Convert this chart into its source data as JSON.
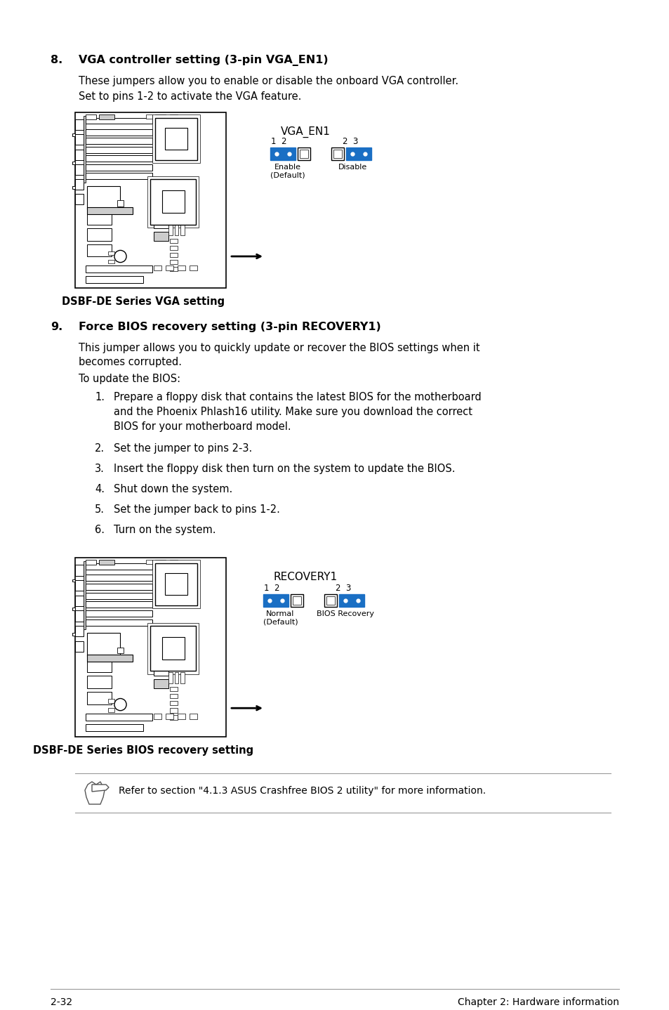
{
  "page_number": "2-32",
  "chapter": "Chapter 2: Hardware information",
  "bg_color": "#ffffff",
  "section8_num": "8.",
  "section8_title": "VGA controller setting (3-pin VGA_EN1)",
  "section8_body1": "These jumpers allow you to enable or disable the onboard VGA controller.",
  "section8_body2": "Set to pins 1-2 to activate the VGA feature.",
  "section8_img_caption": "DSBF-DE Series VGA setting",
  "vga_en1_label": "VGA_EN1",
  "vga_enable_pins": "1  2",
  "vga_disable_pins": "2  3",
  "vga_enable_label": "Enable\n(Default)",
  "vga_disable_label": "Disable",
  "section9_num": "9.",
  "section9_title": "Force BIOS recovery setting (3-pin RECOVERY1)",
  "section9_body1": "This jumper allows you to quickly update or recover the BIOS settings when it",
  "section9_body2": "becomes corrupted.",
  "section9_body3": "To update the BIOS:",
  "section9_step1a": "Prepare a floppy disk that contains the latest BIOS for the motherboard",
  "section9_step1b": "and the Phoenix Phlash16 utility. Make sure you download the correct",
  "section9_step1c": "BIOS for your motherboard model.",
  "section9_step2": "Set the jumper to pins 2-3.",
  "section9_step3": "Insert the floppy disk then turn on the system to update the BIOS.",
  "section9_step4": "Shut down the system.",
  "section9_step5": "Set the jumper back to pins 1-2.",
  "section9_step6": "Turn on the system.",
  "section9_img_caption": "DSBF-DE Series BIOS recovery setting",
  "recovery1_label": "RECOVERY1",
  "recovery_normal_label": "Normal\n(Default)",
  "recovery_bios_label": "BIOS Recovery",
  "note_text": "Refer to section \"4.1.3 ASUS Crashfree BIOS 2 utility\" for more information.",
  "blue_color": "#1a6fc4",
  "text_color": "#000000",
  "light_gray": "#cccccc",
  "med_gray": "#999999",
  "dark_gray": "#555555"
}
